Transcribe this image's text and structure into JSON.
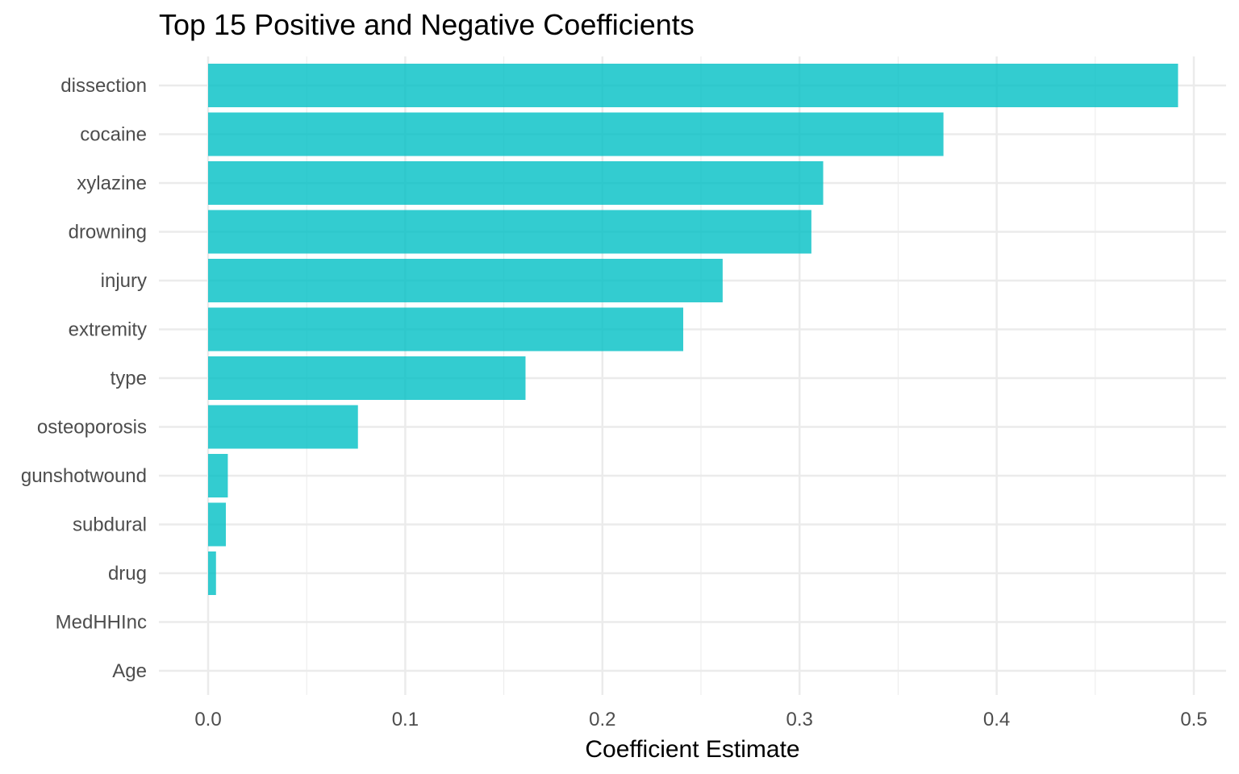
{
  "chart_data": {
    "type": "bar",
    "orientation": "horizontal",
    "title": "Top 15 Positive and Negative Coefficients",
    "xlabel": "Coefficient Estimate",
    "ylabel": "",
    "categories": [
      "dissection",
      "cocaine",
      "xylazine",
      "drowning",
      "injury",
      "extremity",
      "type",
      "osteoporosis",
      "gunshotwound",
      "subdural",
      "drug",
      "MedHHInc",
      "Age"
    ],
    "values": [
      0.492,
      0.373,
      0.312,
      0.306,
      0.261,
      0.241,
      0.161,
      0.076,
      0.01,
      0.009,
      0.004,
      0.0,
      0.0
    ],
    "xlim": [
      -0.025,
      0.508
    ],
    "x_ticks": [
      0.0,
      0.1,
      0.2,
      0.3,
      0.4,
      0.5
    ],
    "x_tick_labels": [
      "0.0",
      "0.1",
      "0.2",
      "0.3",
      "0.4",
      "0.5"
    ],
    "bar_color": "#00bfc4",
    "bar_opacity": 0.8,
    "grid": true,
    "legend": "none"
  }
}
